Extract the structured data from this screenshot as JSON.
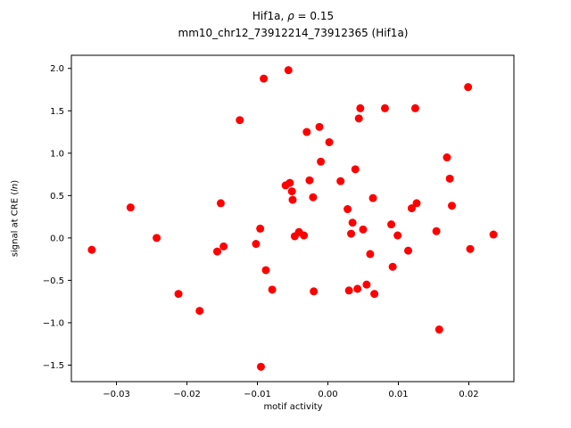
{
  "title": {
    "line1_prefix": "Hif1a, ",
    "line1_rho": "ρ",
    "line1_suffix": " = 0.15",
    "line2": "mm10_chr12_73912214_73912365 (Hif1a)"
  },
  "ylabel_parts": {
    "prefix": "signal at CRE (",
    "italic": "ln",
    "suffix": ")"
  },
  "chart_data": {
    "type": "scatter",
    "title": "Hif1a, ρ = 0.15",
    "subtitle": "mm10_chr12_73912214_73912365 (Hif1a)",
    "xlabel": "motif activity",
    "ylabel": "signal at CRE (ln)",
    "xlim": [
      -0.0364,
      0.0264
    ],
    "ylim": [
      -1.695,
      2.155
    ],
    "x_ticks": [
      -0.03,
      -0.02,
      -0.01,
      0.0,
      0.01,
      0.02
    ],
    "x_tick_labels": [
      "−0.03",
      "−0.02",
      "−0.01",
      "0.00",
      "0.01",
      "0.02"
    ],
    "y_ticks": [
      -1.5,
      -1.0,
      -0.5,
      0.0,
      0.5,
      1.0,
      1.5,
      2.0
    ],
    "y_tick_labels": [
      "−1.5",
      "−1.0",
      "−0.5",
      "0.0",
      "0.5",
      "1.0",
      "1.5",
      "2.0"
    ],
    "grid": false,
    "legend": null,
    "marker_color": "#ff0000",
    "marker_size": 4.5,
    "points": [
      [
        -0.0335,
        -0.14
      ],
      [
        -0.028,
        0.36
      ],
      [
        -0.0243,
        0.0
      ],
      [
        -0.0212,
        -0.66
      ],
      [
        -0.0182,
        -0.86
      ],
      [
        -0.0157,
        -0.16
      ],
      [
        -0.0152,
        0.41
      ],
      [
        -0.0148,
        -0.1
      ],
      [
        -0.0125,
        1.39
      ],
      [
        -0.0102,
        -0.07
      ],
      [
        -0.0096,
        0.11
      ],
      [
        -0.0095,
        -1.52
      ],
      [
        -0.0091,
        1.88
      ],
      [
        -0.0088,
        -0.38
      ],
      [
        -0.0079,
        -0.61
      ],
      [
        -0.006,
        0.62
      ],
      [
        -0.0056,
        1.98
      ],
      [
        -0.0054,
        0.65
      ],
      [
        -0.0051,
        0.55
      ],
      [
        -0.005,
        0.45
      ],
      [
        -0.0047,
        0.02
      ],
      [
        -0.0041,
        0.07
      ],
      [
        -0.0034,
        0.03
      ],
      [
        -0.003,
        1.25
      ],
      [
        -0.0026,
        0.68
      ],
      [
        -0.0021,
        0.48
      ],
      [
        -0.002,
        -0.63
      ],
      [
        -0.0012,
        1.31
      ],
      [
        -0.001,
        0.9
      ],
      [
        0.0002,
        1.13
      ],
      [
        0.0018,
        0.67
      ],
      [
        0.0028,
        0.34
      ],
      [
        0.003,
        -0.62
      ],
      [
        0.0033,
        0.05
      ],
      [
        0.0035,
        0.18
      ],
      [
        0.0039,
        0.81
      ],
      [
        0.0042,
        -0.6
      ],
      [
        0.0044,
        1.41
      ],
      [
        0.0046,
        1.53
      ],
      [
        0.005,
        0.1
      ],
      [
        0.0055,
        -0.55
      ],
      [
        0.006,
        -0.19
      ],
      [
        0.0064,
        0.47
      ],
      [
        0.0066,
        -0.66
      ],
      [
        0.0081,
        1.53
      ],
      [
        0.009,
        0.16
      ],
      [
        0.0092,
        -0.34
      ],
      [
        0.0099,
        0.03
      ],
      [
        0.0114,
        -0.15
      ],
      [
        0.0119,
        0.35
      ],
      [
        0.0124,
        1.53
      ],
      [
        0.0126,
        0.41
      ],
      [
        0.0154,
        0.08
      ],
      [
        0.0158,
        -1.08
      ],
      [
        0.0169,
        0.95
      ],
      [
        0.0173,
        0.7
      ],
      [
        0.0176,
        0.38
      ],
      [
        0.0199,
        1.78
      ],
      [
        0.0202,
        -0.13
      ],
      [
        0.0235,
        0.04
      ]
    ]
  }
}
